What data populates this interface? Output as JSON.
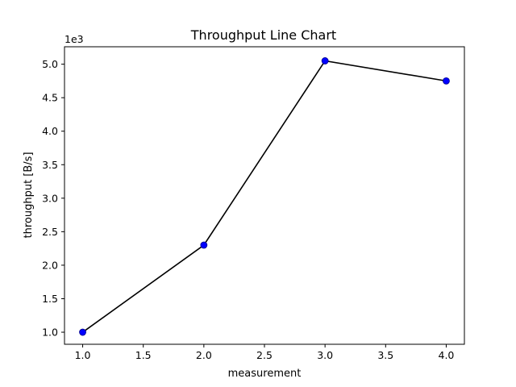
{
  "chart_data": {
    "type": "line",
    "title": "Throughput Line Chart",
    "xlabel": "measurement",
    "ylabel": "throughput [B/s]",
    "y_offset_label": "1e3",
    "x": [
      1.0,
      2.0,
      3.0,
      4.0
    ],
    "series": [
      {
        "values": [
          1000,
          2300,
          5050,
          4750
        ]
      }
    ],
    "xlim": [
      0.85,
      4.15
    ],
    "ylim": [
      820,
      5260
    ],
    "x_ticks": [
      1.0,
      1.5,
      2.0,
      2.5,
      3.0,
      3.5,
      4.0
    ],
    "x_tick_labels": [
      "1.0",
      "1.5",
      "2.0",
      "2.5",
      "3.0",
      "3.5",
      "4.0"
    ],
    "y_ticks": [
      1000,
      1500,
      2000,
      2500,
      3000,
      3500,
      4000,
      4500,
      5000
    ],
    "y_tick_labels": [
      "1.0",
      "1.5",
      "2.0",
      "2.5",
      "3.0",
      "3.5",
      "4.0",
      "4.5",
      "5.0"
    ],
    "grid": false,
    "colors": {
      "line": "#000000",
      "marker": "#0000ff",
      "marker_edge": "#00008b"
    }
  }
}
